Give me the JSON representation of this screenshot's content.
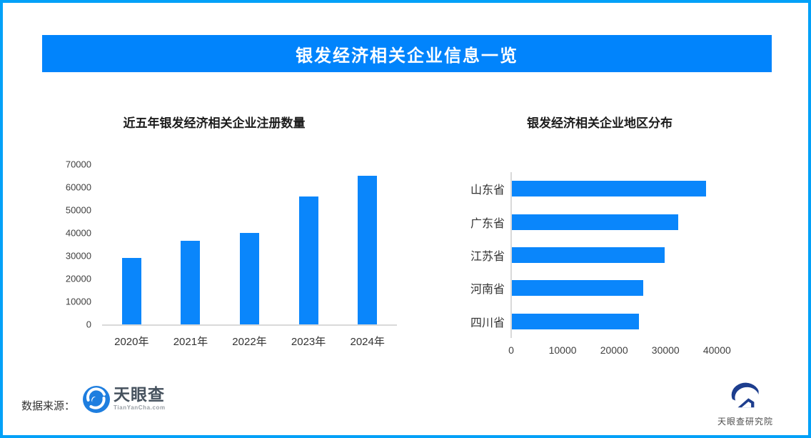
{
  "banner": {
    "title": "银发经济相关企业信息一览"
  },
  "chart_data": [
    {
      "id": "registrations",
      "type": "bar",
      "title": "近五年银发经济相关企业注册数量",
      "categories": [
        "2020年",
        "2021年",
        "2022年",
        "2023年",
        "2024年"
      ],
      "values": [
        29000,
        36500,
        40000,
        56000,
        65000
      ],
      "xlabel": "",
      "ylabel": "",
      "ylim": [
        0,
        70000
      ],
      "y_ticks": [
        0,
        10000,
        20000,
        30000,
        40000,
        50000,
        60000,
        70000
      ],
      "grid": false,
      "legend": "none",
      "bar_color": "#0A86FB"
    },
    {
      "id": "regions",
      "type": "bar-horizontal",
      "title": "银发经济相关企业地区分布",
      "categories": [
        "山东省",
        "广东省",
        "江苏省",
        "河南省",
        "四川省"
      ],
      "values": [
        37700,
        32300,
        29700,
        25500,
        24700
      ],
      "xlabel": "",
      "ylabel": "",
      "xlim": [
        0,
        48000
      ],
      "x_ticks": [
        0,
        10000,
        20000,
        30000,
        40000
      ],
      "grid": false,
      "legend": "none",
      "bar_color": "#0A86FB"
    }
  ],
  "footer": {
    "source_label": "数据来源：",
    "tianyancha_name": "天眼查",
    "tianyancha_sub": "TianYanCha.com",
    "research_name": "天眼查研究院"
  },
  "colors": {
    "frame_border": "#02A1F8",
    "banner_bg": "#0184FC",
    "banner_text": "#FFFFFF",
    "bar": "#0A86FB",
    "axis_line": "#D9D9D9"
  }
}
